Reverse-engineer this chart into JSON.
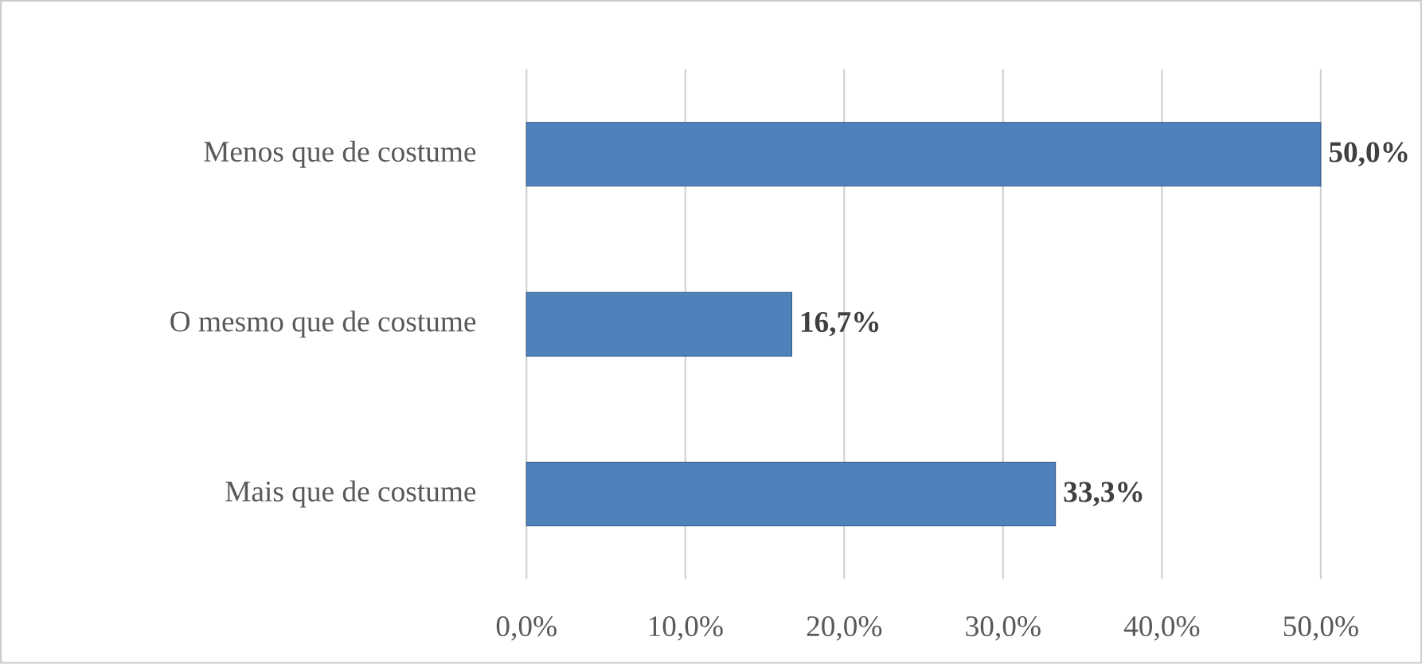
{
  "chart_data": {
    "type": "bar",
    "orientation": "horizontal",
    "categories": [
      "Menos que de costume",
      "O mesmo que de costume",
      "Mais que de costume"
    ],
    "values": [
      50.0,
      16.7,
      33.3
    ],
    "color": "#4f81bd",
    "value_labels": [
      "50,0%",
      "16,7%",
      "33,3%"
    ],
    "xlim": [
      0,
      50
    ],
    "xticks": [
      {
        "value": 0,
        "label": "0,0%"
      },
      {
        "value": 10,
        "label": "10,0%"
      },
      {
        "value": 20,
        "label": "20,0%"
      },
      {
        "value": 30,
        "label": "30,0%"
      },
      {
        "value": 40,
        "label": "40,0%"
      },
      {
        "value": 50,
        "label": "50,0%"
      }
    ],
    "grid": "x"
  }
}
